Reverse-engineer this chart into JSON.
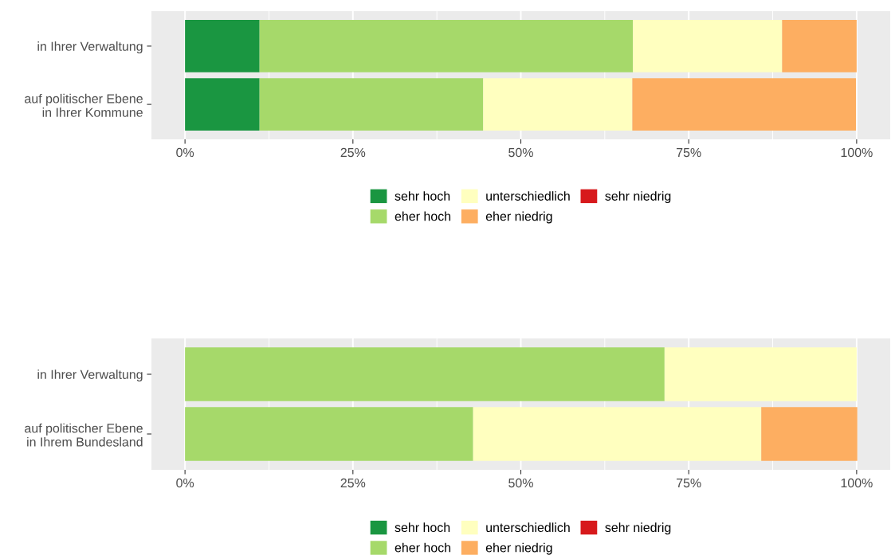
{
  "chart_data": [
    {
      "type": "bar",
      "orientation": "horizontal",
      "stacked": true,
      "categories": [
        "in Ihrer Verwaltung",
        "auf politischer Ebene\nin Ihrer Kommune"
      ],
      "series": [
        {
          "name": "sehr hoch",
          "color": "#1a9641",
          "values": [
            11.1,
            11.1
          ]
        },
        {
          "name": "eher hoch",
          "color": "#a6d96a",
          "values": [
            55.6,
            33.3
          ]
        },
        {
          "name": "unterschiedlich",
          "color": "#ffffbf",
          "values": [
            22.2,
            22.2
          ]
        },
        {
          "name": "eher niedrig",
          "color": "#fdae61",
          "values": [
            11.1,
            33.3
          ]
        },
        {
          "name": "sehr niedrig",
          "color": "#d7191c",
          "values": [
            0,
            0
          ]
        }
      ],
      "xlim": [
        -5,
        105
      ],
      "xticks": [
        {
          "value": 0,
          "label": "0%"
        },
        {
          "value": 12.5,
          "label": null
        },
        {
          "value": 25,
          "label": "25%"
        },
        {
          "value": 37.5,
          "label": null
        },
        {
          "value": 50,
          "label": "50%"
        },
        {
          "value": 62.5,
          "label": null
        },
        {
          "value": 75,
          "label": "75%"
        },
        {
          "value": 87.5,
          "label": null
        },
        {
          "value": 100,
          "label": "100%"
        }
      ],
      "grid": "x",
      "legend": "bottom"
    },
    {
      "type": "bar",
      "orientation": "horizontal",
      "stacked": true,
      "categories": [
        "in Ihrer Verwaltung",
        "auf politischer Ebene\nin Ihrem Bundesland"
      ],
      "series": [
        {
          "name": "sehr hoch",
          "color": "#1a9641",
          "values": [
            0,
            0
          ]
        },
        {
          "name": "eher hoch",
          "color": "#a6d96a",
          "values": [
            71.4,
            42.9
          ]
        },
        {
          "name": "unterschiedlich",
          "color": "#ffffbf",
          "values": [
            28.6,
            42.9
          ]
        },
        {
          "name": "eher niedrig",
          "color": "#fdae61",
          "values": [
            0,
            14.3
          ]
        },
        {
          "name": "sehr niedrig",
          "color": "#d7191c",
          "values": [
            0,
            0
          ]
        }
      ],
      "xlim": [
        -5,
        105
      ],
      "xticks": [
        {
          "value": 0,
          "label": "0%"
        },
        {
          "value": 12.5,
          "label": null
        },
        {
          "value": 25,
          "label": "25%"
        },
        {
          "value": 37.5,
          "label": null
        },
        {
          "value": 50,
          "label": "50%"
        },
        {
          "value": 62.5,
          "label": null
        },
        {
          "value": 75,
          "label": "75%"
        },
        {
          "value": 87.5,
          "label": null
        },
        {
          "value": 100,
          "label": "100%"
        }
      ],
      "grid": "x",
      "legend": "bottom"
    }
  ]
}
